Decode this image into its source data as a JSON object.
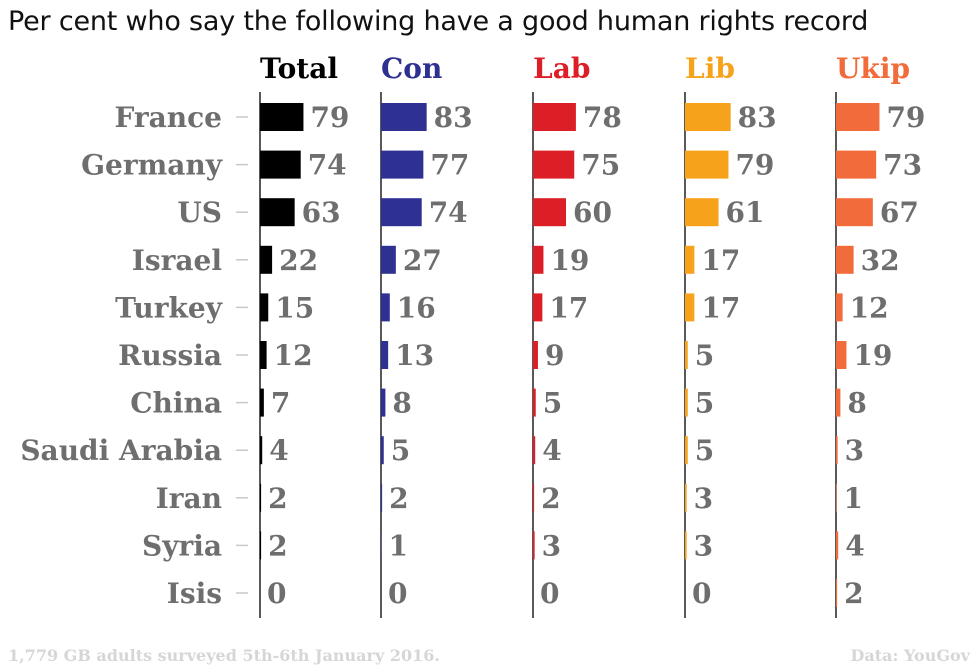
{
  "title": "Per cent who say the following have a good human rights record",
  "footnote": "1,779 GB adults surveyed 5th-6th January 2016.",
  "source": "Data: YouGov",
  "colors": {
    "Total": "#000000",
    "Con": "#2e3192",
    "Lab": "#dc1f26",
    "Lib": "#f7a21b",
    "Ukip": "#f26b3a",
    "labels": "#6e6e6e"
  },
  "chart_data": {
    "type": "bar",
    "orientation": "horizontal",
    "layout": "small-multiples",
    "categories": [
      "France",
      "Germany",
      "US",
      "Israel",
      "Turkey",
      "Russia",
      "China",
      "Saudi Arabia",
      "Iran",
      "Syria",
      "Isis"
    ],
    "series": [
      {
        "name": "Total",
        "color": "#000000",
        "values": [
          79,
          74,
          63,
          22,
          15,
          12,
          7,
          4,
          2,
          2,
          0
        ]
      },
      {
        "name": "Con",
        "color": "#2e3192",
        "values": [
          83,
          77,
          74,
          27,
          16,
          13,
          8,
          5,
          2,
          1,
          0
        ]
      },
      {
        "name": "Lab",
        "color": "#dc1f26",
        "values": [
          78,
          75,
          60,
          19,
          17,
          9,
          5,
          4,
          2,
          3,
          0
        ]
      },
      {
        "name": "Lib",
        "color": "#f7a21b",
        "values": [
          83,
          79,
          61,
          17,
          17,
          5,
          5,
          5,
          3,
          3,
          0
        ]
      },
      {
        "name": "Ukip",
        "color": "#f26b3a",
        "values": [
          79,
          73,
          67,
          32,
          12,
          19,
          8,
          3,
          1,
          4,
          2
        ]
      }
    ],
    "data_labels": true,
    "grid": false,
    "xlim": [
      0,
      100
    ]
  }
}
